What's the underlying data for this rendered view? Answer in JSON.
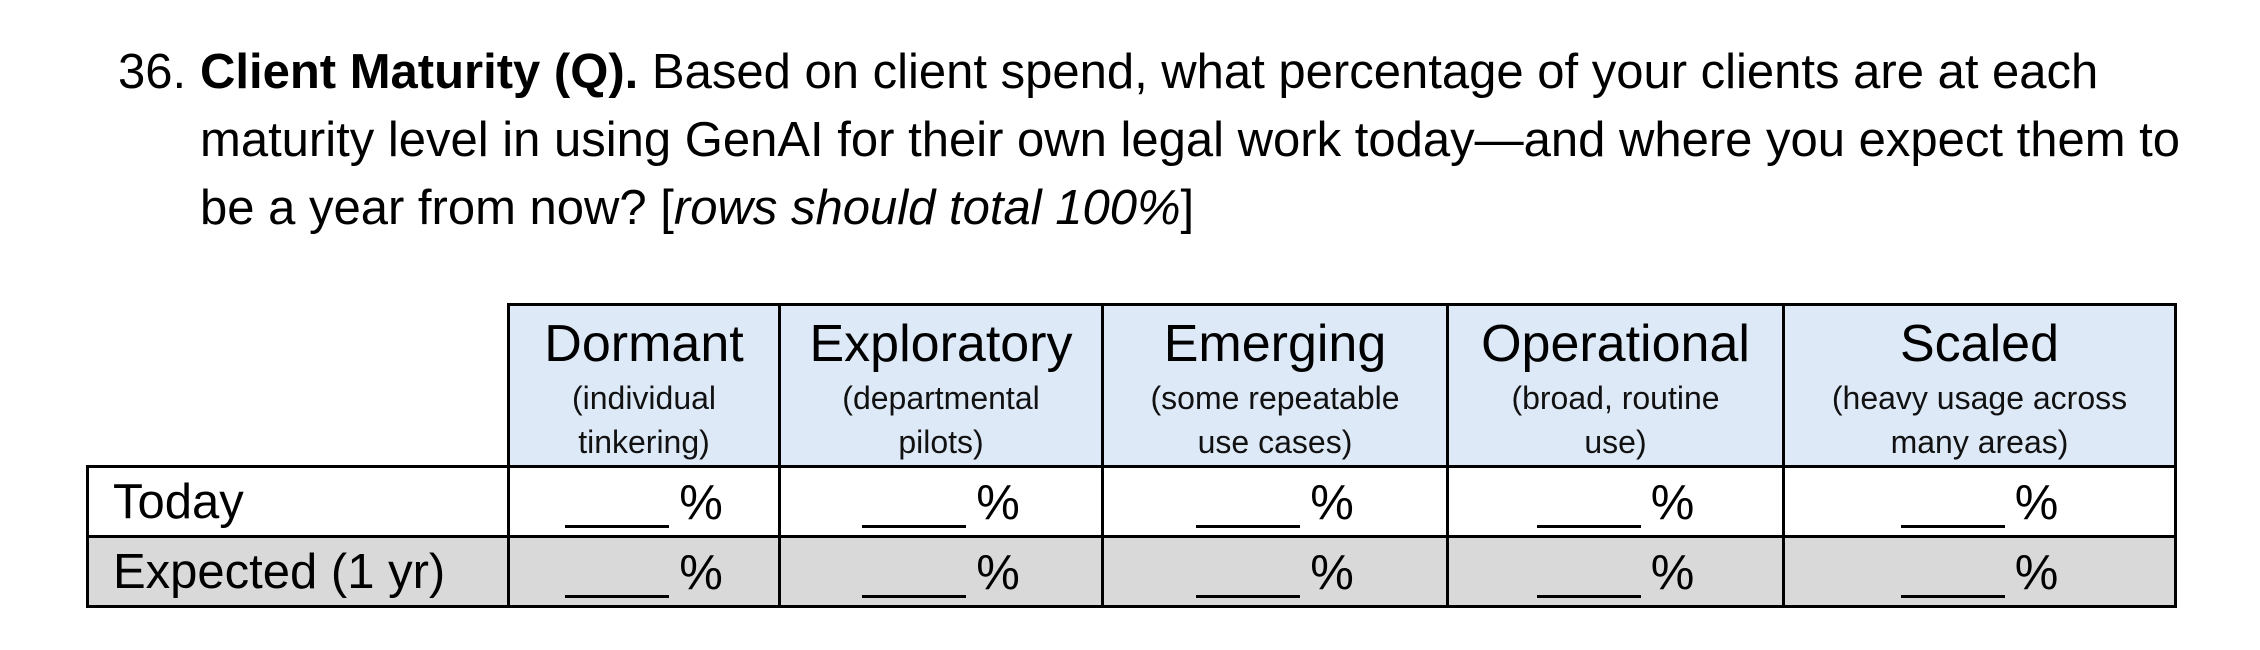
{
  "question": {
    "number": "36.",
    "title": "Client Maturity (Q).",
    "text_before_note": " Based on client spend, what percentage of your clients are at each maturity level in using GenAI for their own legal work today—and where you expect them to be a year from now? [",
    "note": "rows should total 100%",
    "text_after_note": "]"
  },
  "table": {
    "levels": [
      {
        "name": "Dormant",
        "desc_line1": "(individual",
        "desc_line2": "tinkering)"
      },
      {
        "name": "Exploratory",
        "desc_line1": "(departmental",
        "desc_line2": "pilots)"
      },
      {
        "name": "Emerging",
        "desc_line1": "(some repeatable",
        "desc_line2": "use cases)"
      },
      {
        "name": "Operational",
        "desc_line1": "(broad, routine",
        "desc_line2": "use)"
      },
      {
        "name": "Scaled",
        "desc_line1": "(heavy usage across",
        "desc_line2": "many areas)"
      }
    ],
    "rows": [
      {
        "label": "Today"
      },
      {
        "label": "Expected (1 yr)"
      }
    ],
    "percent_symbol": "%"
  },
  "colors": {
    "header_fill": "#dde9f7",
    "expected_row_fill": "#d9d9d9",
    "border": "#000000"
  }
}
